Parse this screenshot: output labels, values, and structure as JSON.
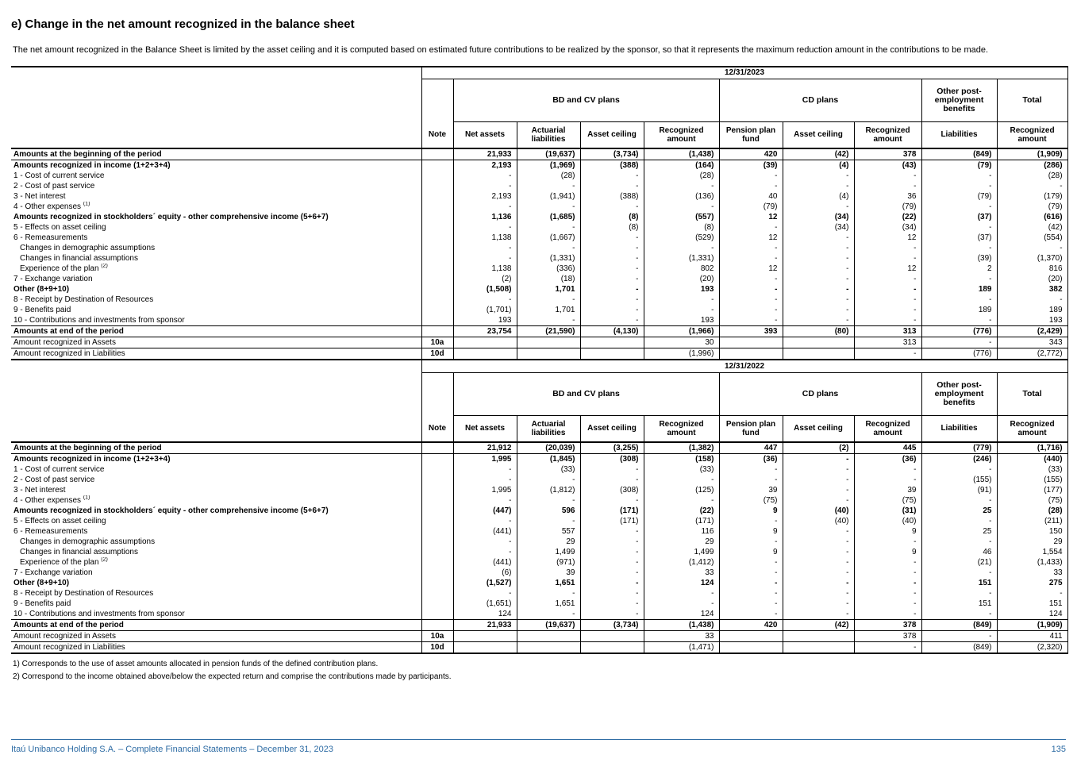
{
  "page": {
    "title": "e) Change in the net amount recognized in the balance sheet",
    "intro": "The net amount recognized in the Balance Sheet is limited by the asset ceiling and it is computed based on estimated future contributions to be realized by the sponsor, so that it represents the maximum reduction amount in the contributions to be made.",
    "footnotes": [
      "1) Corresponds to the use of asset amounts allocated in pension funds of the defined contribution plans.",
      "2) Correspond to the income obtained above/below the expected return and comprise the contributions made by participants."
    ],
    "footer": {
      "left": "Itaú Unibanco Holding S.A. – Complete Financial Statements – December 31, 2023",
      "page_number": "135"
    },
    "colors": {
      "accent_blue": "#2e6ca4",
      "text": "#000000"
    }
  },
  "tables": [
    {
      "date": "12/31/2023",
      "groups": [
        {
          "label": "BD and CV plans",
          "span": 4
        },
        {
          "label": "CD plans",
          "span": 3
        },
        {
          "label": "Other post-employment benefits",
          "span": 1
        },
        {
          "label": "Total",
          "span": 1
        }
      ],
      "columns": [
        "Note",
        "Net assets",
        "Actuarial liabilities",
        "Asset ceiling",
        "Recognized amount",
        "Pension plan fund",
        "Asset ceiling",
        "Recognized amount",
        "Liabilities",
        "Recognized amount"
      ],
      "rows": [
        {
          "label": "Amounts at the beginning of the period",
          "bold": true,
          "bb": true,
          "values": [
            "21,933",
            "(19,637)",
            "(3,734)",
            "(1,438)",
            "420",
            "(42)",
            "378",
            "(849)",
            "(1,909)"
          ]
        },
        {
          "label": "Amounts recognized in income (1+2+3+4)",
          "bold": true,
          "values": [
            "2,193",
            "(1,969)",
            "(388)",
            "(164)",
            "(39)",
            "(4)",
            "(43)",
            "(79)",
            "(286)"
          ]
        },
        {
          "label": "1 - Cost of current service",
          "values": [
            "-",
            "(28)",
            "-",
            "(28)",
            "-",
            "-",
            "-",
            "-",
            "(28)"
          ]
        },
        {
          "label": "2 - Cost of past service",
          "values": [
            "-",
            "-",
            "-",
            "-",
            "-",
            "-",
            "-",
            "-",
            "-"
          ]
        },
        {
          "label": "3 - Net interest",
          "values": [
            "2,193",
            "(1,941)",
            "(388)",
            "(136)",
            "40",
            "(4)",
            "36",
            "(79)",
            "(179)"
          ]
        },
        {
          "label": "4 - Other expenses ",
          "sup": "(1)",
          "values": [
            "-",
            "-",
            "-",
            "-",
            "(79)",
            "-",
            "(79)",
            "-",
            "(79)"
          ]
        },
        {
          "label": "Amounts recognized in stockholders´ equity - other comprehensive income  (5+6+7)",
          "bold": true,
          "values": [
            "1,136",
            "(1,685)",
            "(8)",
            "(557)",
            "12",
            "(34)",
            "(22)",
            "(37)",
            "(616)"
          ]
        },
        {
          "label": "5 - Effects on asset ceiling",
          "values": [
            "-",
            "-",
            "(8)",
            "(8)",
            "-",
            "(34)",
            "(34)",
            "-",
            "(42)"
          ]
        },
        {
          "label": "6 - Remeasurements",
          "values": [
            "1,138",
            "(1,667)",
            "-",
            "(529)",
            "12",
            "-",
            "12",
            "(37)",
            "(554)"
          ]
        },
        {
          "label": "Changes in demographic assumptions",
          "indent": true,
          "values": [
            "-",
            "-",
            "-",
            "-",
            "-",
            "-",
            "-",
            "-",
            "-"
          ]
        },
        {
          "label": "Changes in financial assumptions",
          "indent": true,
          "values": [
            "-",
            "(1,331)",
            "-",
            "(1,331)",
            "-",
            "-",
            "-",
            "(39)",
            "(1,370)"
          ]
        },
        {
          "label": "Experience of the plan ",
          "sup": "(2)",
          "indent": true,
          "values": [
            "1,138",
            "(336)",
            "-",
            "802",
            "12",
            "-",
            "12",
            "2",
            "816"
          ]
        },
        {
          "label": "7 - Exchange variation",
          "values": [
            "(2)",
            "(18)",
            "-",
            "(20)",
            "-",
            "-",
            "-",
            "-",
            "(20)"
          ]
        },
        {
          "label": "Other (8+9+10)",
          "bold": true,
          "values": [
            "(1,508)",
            "1,701",
            "-",
            "193",
            "-",
            "-",
            "-",
            "189",
            "382"
          ]
        },
        {
          "label": "8 - Receipt by Destination of Resources",
          "values": [
            "-",
            "-",
            "-",
            "-",
            "-",
            "-",
            "-",
            "-",
            "-"
          ]
        },
        {
          "label": "9 - Benefits paid",
          "values": [
            "(1,701)",
            "1,701",
            "-",
            "-",
            "-",
            "-",
            "-",
            "189",
            "189"
          ]
        },
        {
          "label": "10 - Contributions and investments from sponsor",
          "values": [
            "193",
            "-",
            "-",
            "193",
            "-",
            "-",
            "-",
            "-",
            "193"
          ]
        },
        {
          "label": "Amounts at end of the period",
          "bold": true,
          "bt": true,
          "bb": true,
          "values": [
            "23,754",
            "(21,590)",
            "(4,130)",
            "(1,966)",
            "393",
            "(80)",
            "313",
            "(776)",
            "(2,429)"
          ]
        },
        {
          "label": "Amount recognized in Assets",
          "note": "10a",
          "bb": true,
          "values": [
            "",
            "",
            "",
            "30",
            "",
            "",
            "313",
            "-",
            "343"
          ]
        },
        {
          "label": "Amount recognized in Liabilities",
          "note": "10d",
          "values": [
            "",
            "",
            "",
            "(1,996)",
            "",
            "",
            "-",
            "(776)",
            "(2,772)"
          ]
        }
      ]
    },
    {
      "date": "12/31/2022",
      "groups": [
        {
          "label": "BD and CV plans",
          "span": 4
        },
        {
          "label": "CD plans",
          "span": 3
        },
        {
          "label": "Other post-employment benefits",
          "span": 1
        },
        {
          "label": "Total",
          "span": 1
        }
      ],
      "columns": [
        "Note",
        "Net assets",
        "Actuarial liabilities",
        "Asset ceiling",
        "Recognized amount",
        "Pension plan fund",
        "Asset ceiling",
        "Recognized amount",
        "Liabilities",
        "Recognized amount"
      ],
      "rows": [
        {
          "label": "Amounts at the beginning of the period",
          "bold": true,
          "bb": true,
          "values": [
            "21,912",
            "(20,039)",
            "(3,255)",
            "(1,382)",
            "447",
            "(2)",
            "445",
            "(779)",
            "(1,716)"
          ]
        },
        {
          "label": "Amounts recognized in income (1+2+3+4)",
          "bold": true,
          "values": [
            "1,995",
            "(1,845)",
            "(308)",
            "(158)",
            "(36)",
            "-",
            "(36)",
            "(246)",
            "(440)"
          ]
        },
        {
          "label": "1 - Cost of current service",
          "values": [
            "-",
            "(33)",
            "-",
            "(33)",
            "-",
            "-",
            "-",
            "-",
            "(33)"
          ]
        },
        {
          "label": "2 - Cost of past service",
          "values": [
            "-",
            "-",
            "-",
            "-",
            "-",
            "-",
            "-",
            "(155)",
            "(155)"
          ]
        },
        {
          "label": "3 - Net interest",
          "values": [
            "1,995",
            "(1,812)",
            "(308)",
            "(125)",
            "39",
            "-",
            "39",
            "(91)",
            "(177)"
          ]
        },
        {
          "label": "4 - Other expenses ",
          "sup": "(1)",
          "values": [
            "-",
            "-",
            "-",
            "-",
            "(75)",
            "-",
            "(75)",
            "-",
            "(75)"
          ]
        },
        {
          "label": "Amounts recognized in stockholders´ equity - other comprehensive income (5+6+7)",
          "bold": true,
          "values": [
            "(447)",
            "596",
            "(171)",
            "(22)",
            "9",
            "(40)",
            "(31)",
            "25",
            "(28)"
          ]
        },
        {
          "label": "5 - Effects on asset ceiling",
          "values": [
            "-",
            "-",
            "(171)",
            "(171)",
            "-",
            "(40)",
            "(40)",
            "-",
            "(211)"
          ]
        },
        {
          "label": "6 - Remeasurements",
          "values": [
            "(441)",
            "557",
            "-",
            "116",
            "9",
            "-",
            "9",
            "25",
            "150"
          ]
        },
        {
          "label": "Changes in demographic assumptions",
          "indent": true,
          "values": [
            "-",
            "29",
            "-",
            "29",
            "-",
            "-",
            "-",
            "-",
            "29"
          ]
        },
        {
          "label": "Changes in financial assumptions",
          "indent": true,
          "values": [
            "-",
            "1,499",
            "-",
            "1,499",
            "9",
            "-",
            "9",
            "46",
            "1,554"
          ]
        },
        {
          "label": "Experience of the plan ",
          "sup": "(2)",
          "indent": true,
          "values": [
            "(441)",
            "(971)",
            "-",
            "(1,412)",
            "-",
            "-",
            "-",
            "(21)",
            "(1,433)"
          ]
        },
        {
          "label": "7 - Exchange variation",
          "values": [
            "(6)",
            "39",
            "-",
            "33",
            "-",
            "-",
            "-",
            "-",
            "33"
          ]
        },
        {
          "label": "Other (8+9+10)",
          "bold": true,
          "values": [
            "(1,527)",
            "1,651",
            "-",
            "124",
            "-",
            "-",
            "-",
            "151",
            "275"
          ]
        },
        {
          "label": "8 - Receipt by Destination of Resources",
          "values": [
            "-",
            "-",
            "-",
            "-",
            "-",
            "-",
            "-",
            "-",
            "-"
          ]
        },
        {
          "label": "9 - Benefits paid",
          "values": [
            "(1,651)",
            "1,651",
            "-",
            "-",
            "-",
            "-",
            "-",
            "151",
            "151"
          ]
        },
        {
          "label": "10 - Contributions and investments from sponsor",
          "values": [
            "124",
            "-",
            "-",
            "124",
            "-",
            "-",
            "-",
            "-",
            "124"
          ]
        },
        {
          "label": "Amounts at end of the period",
          "bold": true,
          "bt": true,
          "bb": true,
          "values": [
            "21,933",
            "(19,637)",
            "(3,734)",
            "(1,438)",
            "420",
            "(42)",
            "378",
            "(849)",
            "(1,909)"
          ]
        },
        {
          "label": "Amount recognized in Assets",
          "note": "10a",
          "bb": true,
          "values": [
            "",
            "",
            "",
            "33",
            "",
            "",
            "378",
            "-",
            "411"
          ]
        },
        {
          "label": "Amount recognized in Liabilities",
          "note": "10d",
          "values": [
            "",
            "",
            "",
            "(1,471)",
            "",
            "",
            "-",
            "(849)",
            "(2,320)"
          ]
        }
      ]
    }
  ]
}
